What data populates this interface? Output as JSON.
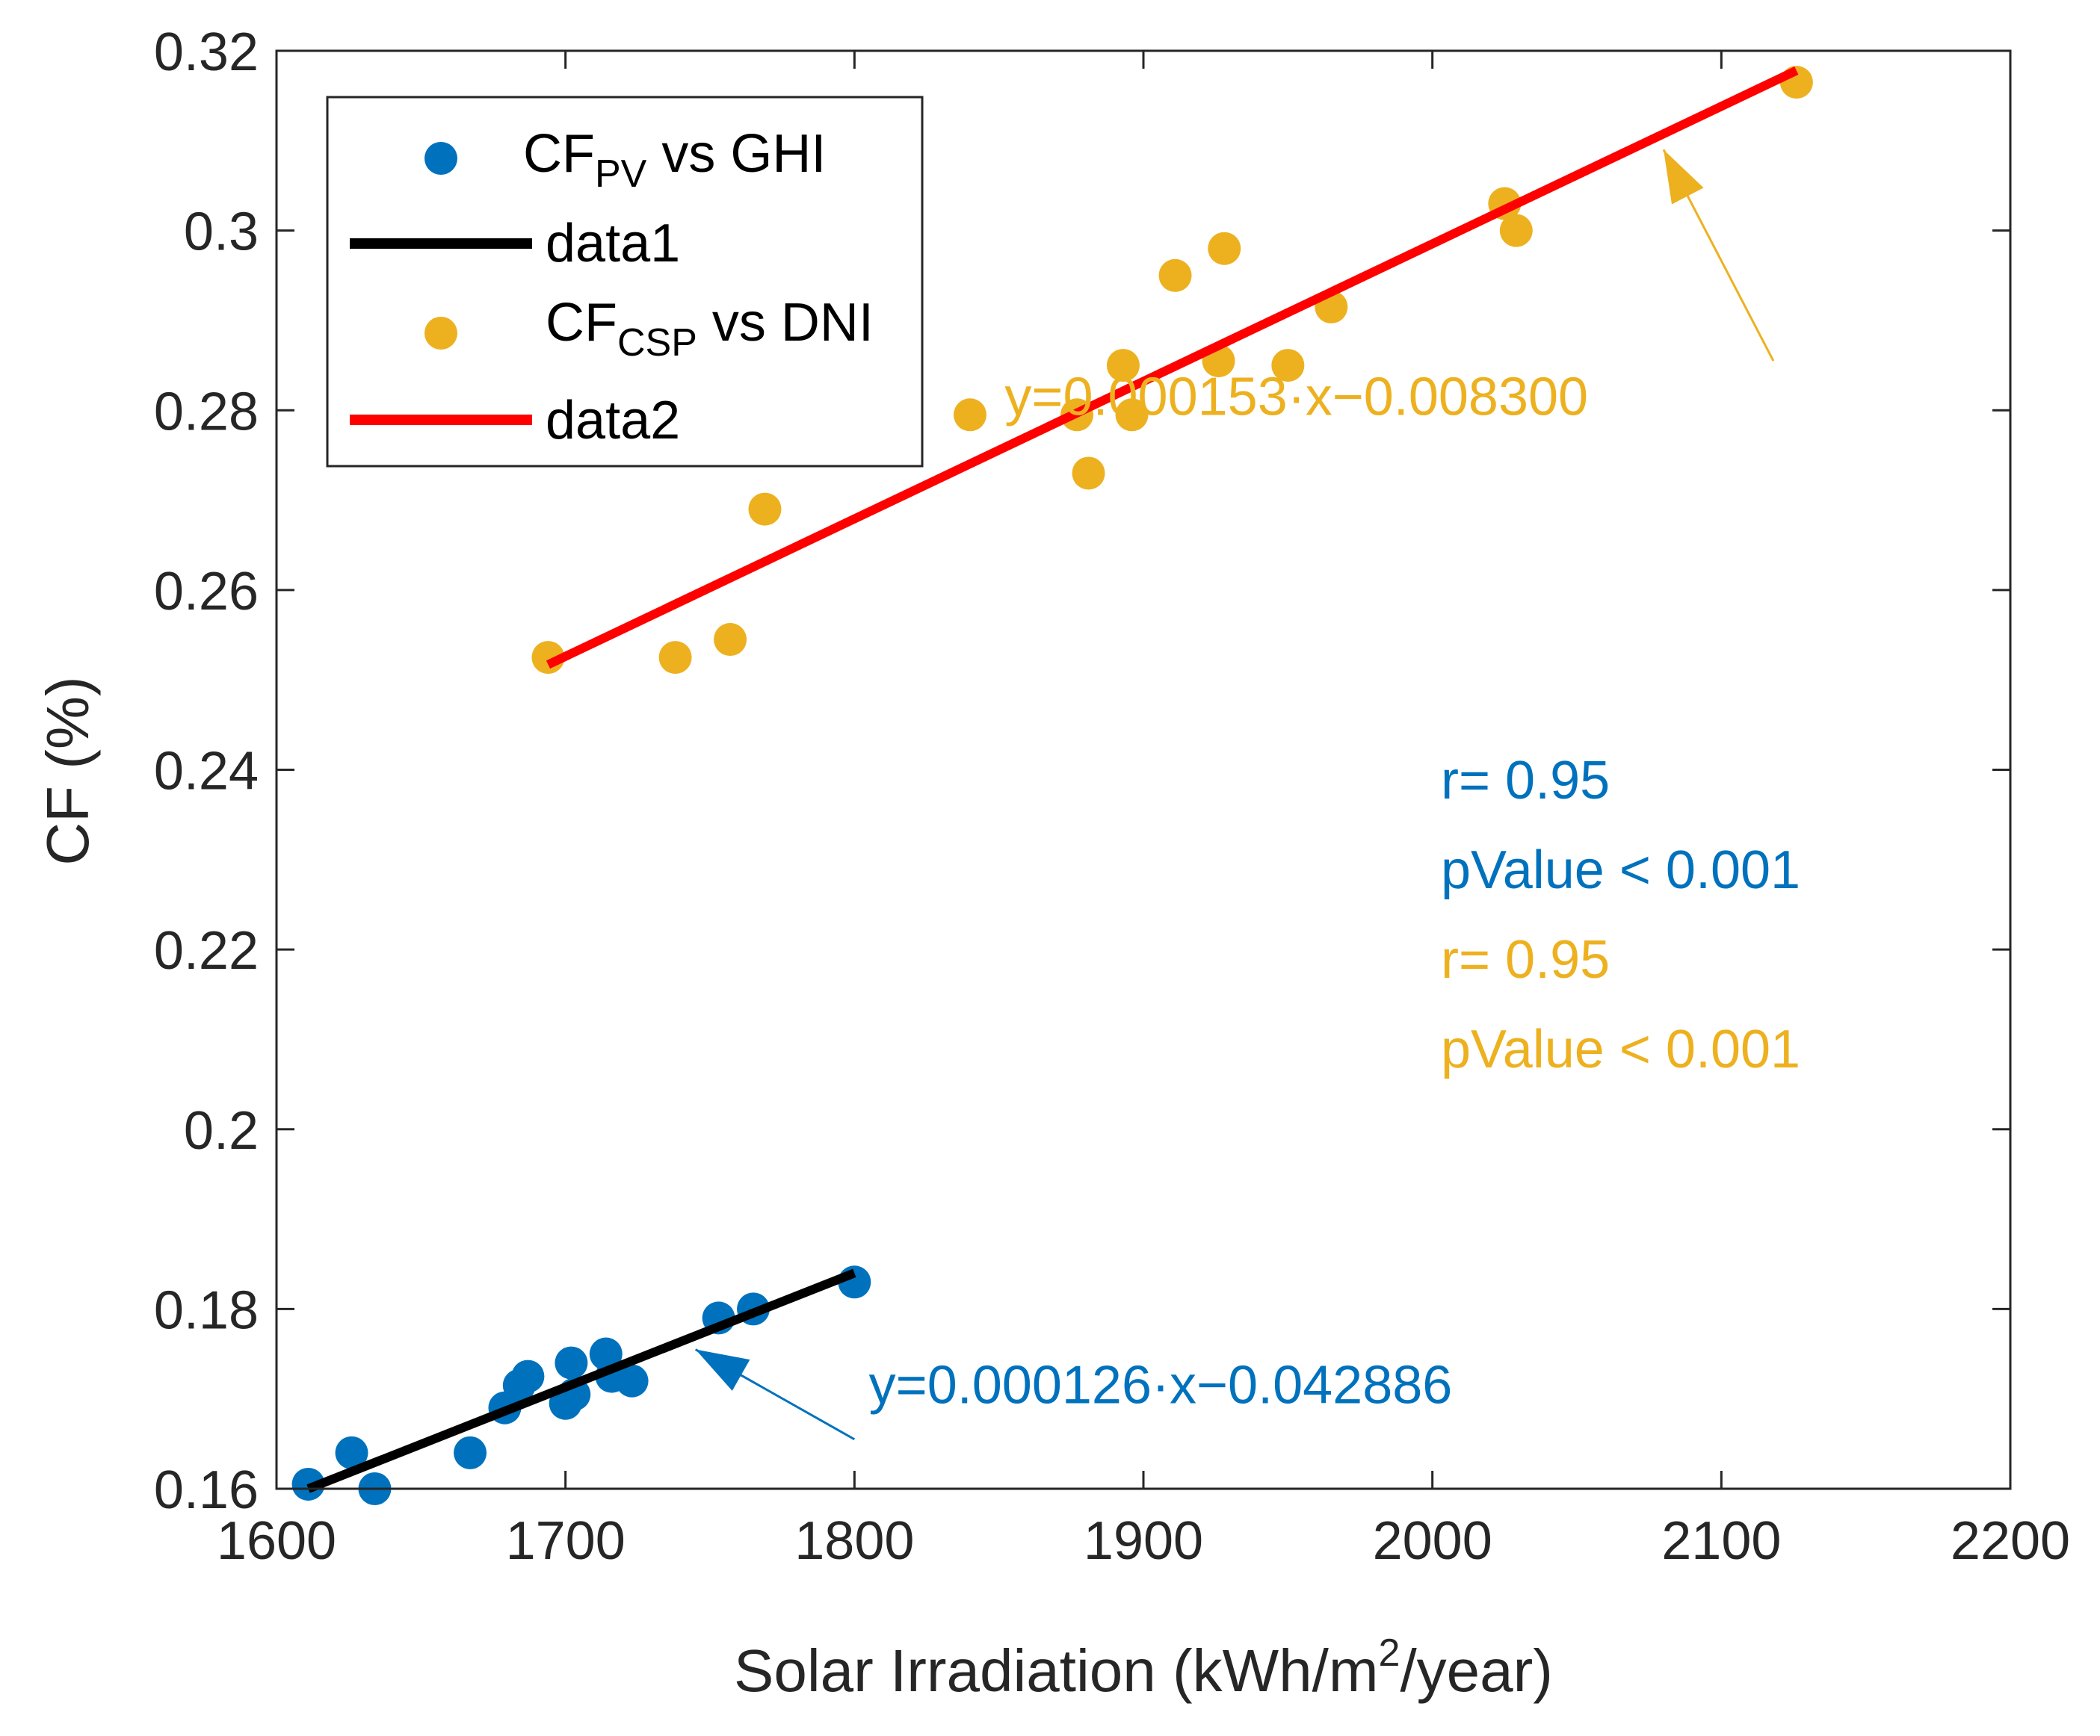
{
  "chart_data": {
    "type": "scatter",
    "title": "",
    "xlabel_main": "Solar Irradiation (kWh/m",
    "xlabel_sup": "2",
    "xlabel_end": "/year)",
    "ylabel": "CF (%)",
    "xlim": [
      1600,
      2200
    ],
    "ylim": [
      0.16,
      0.32
    ],
    "xticks": [
      1600,
      1700,
      1800,
      1900,
      2000,
      2100,
      2200
    ],
    "xtick_labels": [
      "1600",
      "1700",
      "1800",
      "1900",
      "2000",
      "2100",
      "2200"
    ],
    "yticks": [
      0.16,
      0.18,
      0.2,
      0.22,
      0.24,
      0.26,
      0.28,
      0.3,
      0.32
    ],
    "ytick_labels": [
      "0.16",
      "0.18",
      "0.2",
      "0.22",
      "0.24",
      "0.26",
      "0.28",
      "0.3",
      "0.32"
    ],
    "grid": false,
    "legend_position": "top-left",
    "series": [
      {
        "name": "CF_PV vs GHI",
        "legend_main": "CF",
        "legend_sub": "PV",
        "legend_rest": " vs GHI",
        "kind": "scatter",
        "color": "#0072BD",
        "points": [
          [
            1611,
            0.1605
          ],
          [
            1626,
            0.164
          ],
          [
            1634,
            0.16
          ],
          [
            1667,
            0.164
          ],
          [
            1679,
            0.169
          ],
          [
            1684,
            0.1715
          ],
          [
            1687,
            0.1725
          ],
          [
            1700,
            0.1695
          ],
          [
            1702,
            0.174
          ],
          [
            1703,
            0.1705
          ],
          [
            1714,
            0.175
          ],
          [
            1716,
            0.1725
          ],
          [
            1723,
            0.172
          ],
          [
            1753,
            0.179
          ],
          [
            1765,
            0.18
          ],
          [
            1800,
            0.183
          ]
        ]
      },
      {
        "name": "data1",
        "legend_label": "data1",
        "kind": "line",
        "color": "#000000",
        "x": [
          1611,
          1800
        ],
        "y": [
          0.16,
          0.184
        ]
      },
      {
        "name": "CF_CSP vs DNI",
        "legend_main": "CF",
        "legend_sub": "CSP",
        "legend_rest": " vs DNI",
        "kind": "scatter",
        "color": "#EDB120",
        "points": [
          [
            1694,
            0.2525
          ],
          [
            1738,
            0.2525
          ],
          [
            1757,
            0.2545
          ],
          [
            1769,
            0.269
          ],
          [
            1840,
            0.2795
          ],
          [
            1877,
            0.2795
          ],
          [
            1881,
            0.273
          ],
          [
            1893,
            0.285
          ],
          [
            1896,
            0.2795
          ],
          [
            1911,
            0.295
          ],
          [
            1926,
            0.2855
          ],
          [
            1928,
            0.298
          ],
          [
            1950,
            0.285
          ],
          [
            1965,
            0.2915
          ],
          [
            2025,
            0.303
          ],
          [
            2029,
            0.3
          ],
          [
            2126,
            0.3165
          ]
        ]
      },
      {
        "name": "data2",
        "legend_label": "data2",
        "kind": "line",
        "color": "#FF0000",
        "x": [
          1694,
          2126
        ],
        "y": [
          0.2517,
          0.3178
        ]
      }
    ],
    "annotations": {
      "pv_equation": {
        "text": "y=0.000126·x−0.042886",
        "color": "#0072BD",
        "text_x": 1805,
        "text_y": 0.1695,
        "arrow_from": [
          1800,
          0.1655
        ],
        "arrow_to": [
          1745,
          0.1755
        ]
      },
      "csp_equation": {
        "text": "y=0.000153·x−0.008300",
        "color": "#EDB120",
        "text_x": 1852,
        "text_y": 0.2795,
        "arrow_from": [
          2118,
          0.2855
        ],
        "arrow_to": [
          2080,
          0.309
        ]
      },
      "pv_r": {
        "text": "r= 0.95",
        "color": "#0072BD"
      },
      "pv_p": {
        "text": "pValue < 0.001",
        "color": "#0072BD"
      },
      "csp_r": {
        "text": "r= 0.95",
        "color": "#EDB120"
      },
      "csp_p": {
        "text": "pValue < 0.001",
        "color": "#EDB120"
      }
    }
  }
}
